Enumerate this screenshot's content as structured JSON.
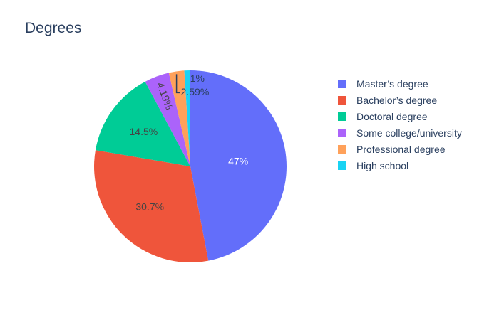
{
  "chart_data": {
    "type": "pie",
    "title": "Degrees",
    "labels": [
      "Master’s degree",
      "Bachelor’s degree",
      "Doctoral degree",
      "Some college/university",
      "Professional degree",
      "High school"
    ],
    "values": [
      47,
      30.7,
      14.5,
      4.19,
      2.59,
      1
    ],
    "percent_labels": [
      "47%",
      "30.7%",
      "14.5%",
      "4.19%",
      "2.59%",
      "1%"
    ],
    "colors": [
      "#636efa",
      "#ef553b",
      "#00cc96",
      "#ab63fa",
      "#ffa15a",
      "#19d3f3"
    ],
    "direction": "clockwise",
    "start_angle": "12 o'clock",
    "legend_position": "right"
  }
}
